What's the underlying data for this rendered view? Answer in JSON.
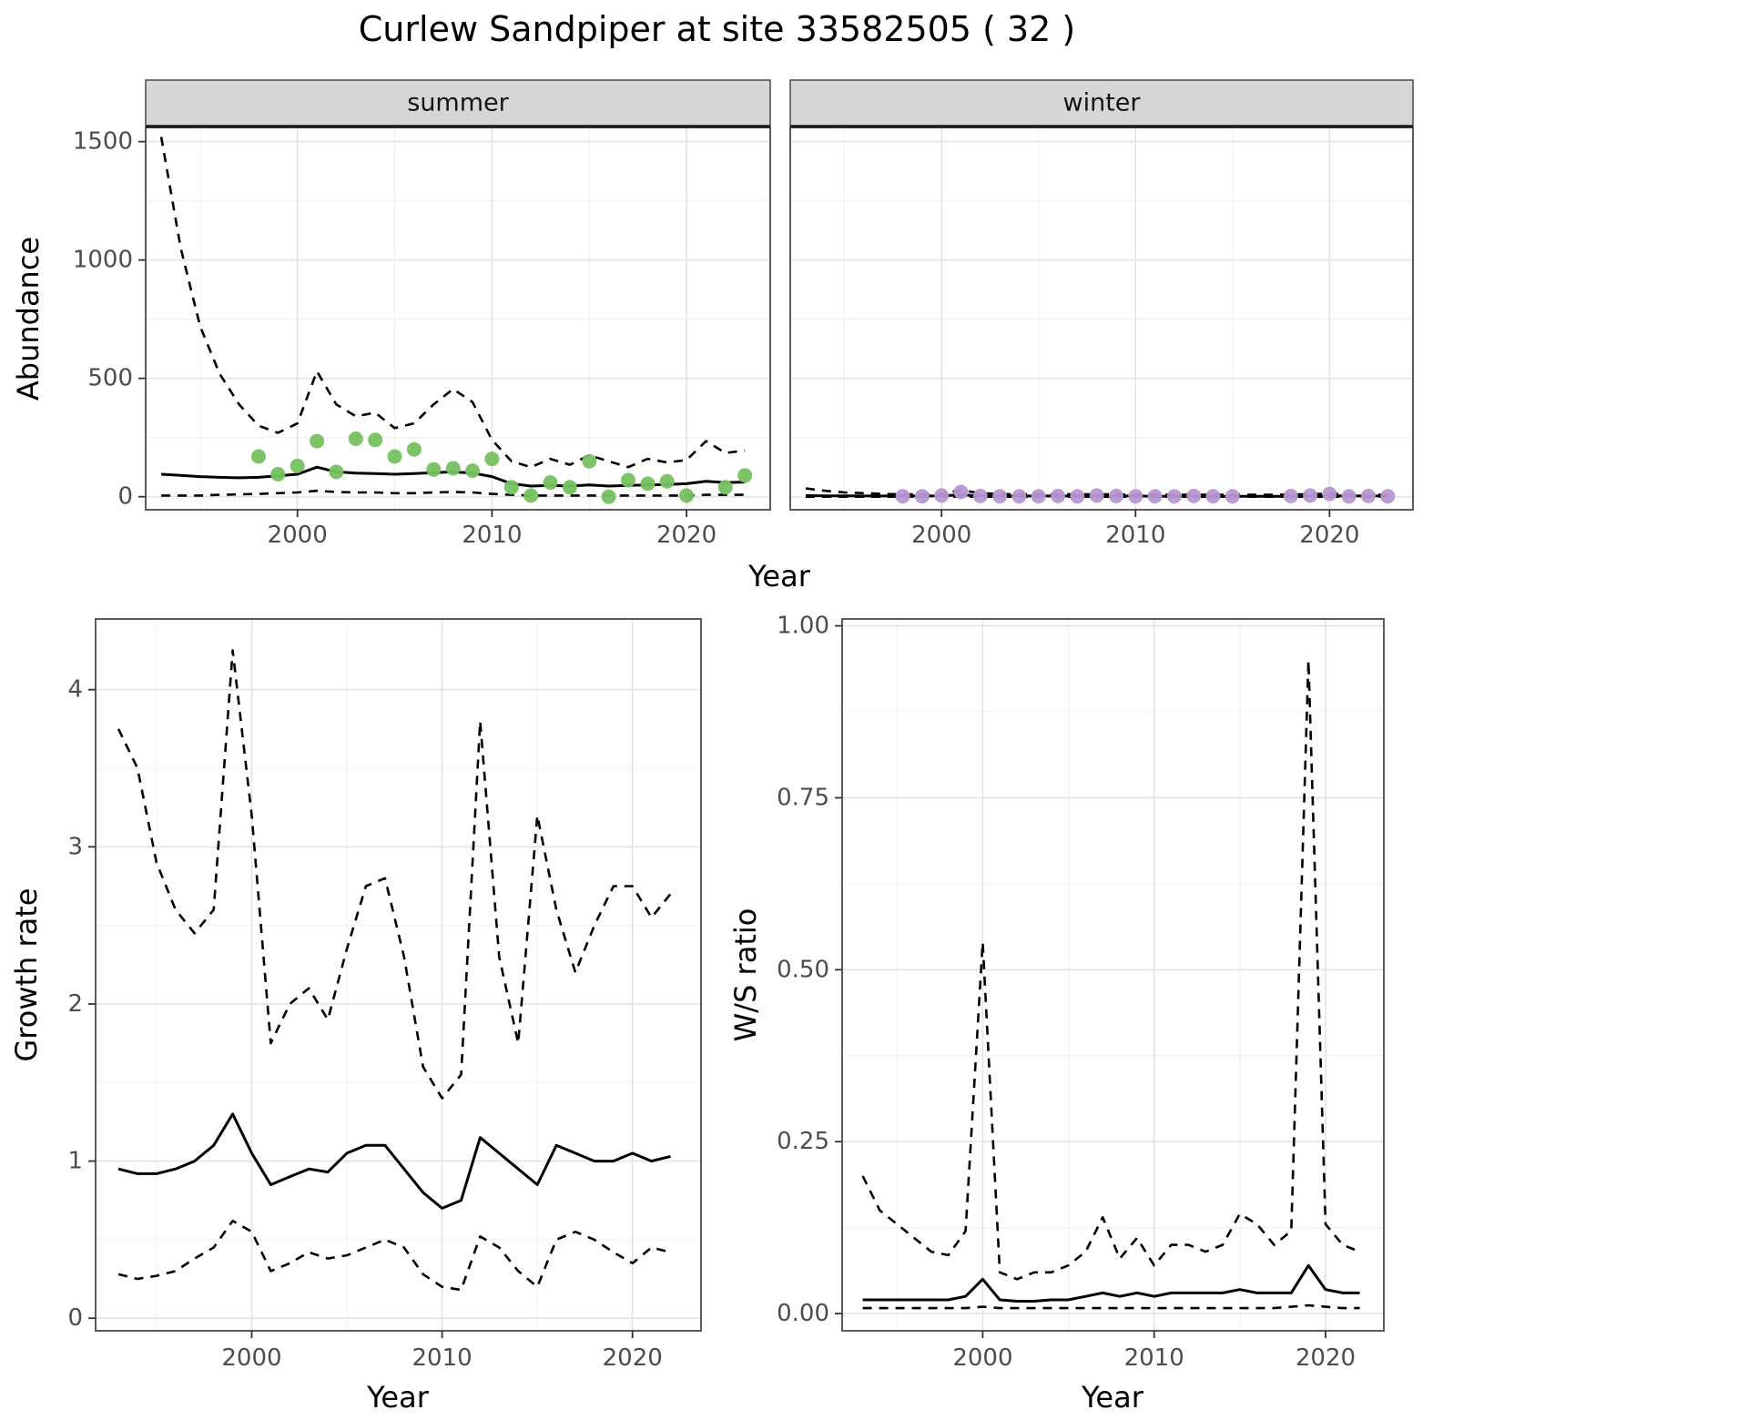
{
  "title": "Curlew Sandpiper at site 33582505 ( 32 )",
  "colors": {
    "line": "#000000",
    "grid_major": "#e3e3e3",
    "grid_minor": "#f1f1f1",
    "panel_border": "#4a4a4a",
    "strip_fill": "#d6d6d6",
    "strip_underline": "#1a1a1a",
    "tick_text": "#4d4d4d",
    "summer_point": "#76c05f",
    "winter_point": "#b897d2"
  },
  "chart_data": [
    {
      "id": "abundance-summer",
      "type": "line",
      "facet_label": "summer",
      "xlabel": "Year",
      "ylabel": "Abundance",
      "xlim": [
        1992.2,
        2024.3
      ],
      "ylim": [
        -55,
        1560
      ],
      "xticks": {
        "values": [
          2000,
          2010,
          2020
        ],
        "labels": [
          "2000",
          "2010",
          "2020"
        ]
      },
      "yticks": {
        "values": [
          0,
          500,
          1000,
          1500
        ],
        "labels": [
          "0",
          "500",
          "1000",
          "1500"
        ]
      },
      "years": [
        1993,
        1994,
        1995,
        1996,
        1997,
        1998,
        1999,
        2000,
        2001,
        2002,
        2003,
        2004,
        2005,
        2006,
        2007,
        2008,
        2009,
        2010,
        2011,
        2012,
        2013,
        2014,
        2015,
        2016,
        2017,
        2018,
        2019,
        2020,
        2021,
        2022,
        2023
      ],
      "series": [
        {
          "name": "mean",
          "style": "solid",
          "values": [
            95,
            90,
            85,
            82,
            80,
            82,
            88,
            95,
            125,
            105,
            100,
            98,
            95,
            98,
            102,
            105,
            100,
            85,
            55,
            45,
            48,
            45,
            50,
            45,
            48,
            50,
            52,
            55,
            65,
            60,
            62
          ]
        },
        {
          "name": "upper-ci",
          "style": "dashed",
          "values": [
            1520,
            1050,
            720,
            520,
            390,
            300,
            270,
            310,
            530,
            390,
            340,
            355,
            290,
            310,
            390,
            455,
            400,
            240,
            150,
            125,
            160,
            135,
            175,
            150,
            125,
            160,
            145,
            155,
            235,
            185,
            195
          ]
        },
        {
          "name": "lower-ci",
          "style": "dashed",
          "values": [
            5,
            5,
            5,
            8,
            10,
            12,
            15,
            18,
            25,
            20,
            18,
            18,
            15,
            15,
            18,
            20,
            18,
            12,
            8,
            5,
            5,
            5,
            5,
            5,
            5,
            5,
            5,
            5,
            8,
            8,
            8
          ]
        }
      ],
      "points": {
        "name": "observed-counts",
        "color_key": "summer_point",
        "x": [
          1998,
          1999,
          2000,
          2001,
          2002,
          2003,
          2004,
          2005,
          2006,
          2007,
          2008,
          2009,
          2010,
          2011,
          2012,
          2013,
          2014,
          2015,
          2016,
          2017,
          2018,
          2019,
          2020,
          2022,
          2023
        ],
        "y": [
          170,
          95,
          130,
          235,
          105,
          245,
          240,
          170,
          200,
          115,
          120,
          110,
          160,
          40,
          5,
          60,
          40,
          150,
          0,
          70,
          55,
          65,
          5,
          40,
          90
        ]
      }
    },
    {
      "id": "abundance-winter",
      "type": "line",
      "facet_label": "winter",
      "xlabel": "Year",
      "ylabel": "",
      "xlim": [
        1992.2,
        2024.3
      ],
      "ylim": [
        -55,
        1560
      ],
      "xticks": {
        "values": [
          2000,
          2010,
          2020
        ],
        "labels": [
          "2000",
          "2010",
          "2020"
        ]
      },
      "yticks": {
        "values": [
          0,
          500,
          1000,
          1500
        ],
        "labels": [
          "0",
          "500",
          "1000",
          "1500"
        ]
      },
      "years": [
        1993,
        1994,
        1995,
        1996,
        1997,
        1998,
        1999,
        2000,
        2001,
        2002,
        2003,
        2004,
        2005,
        2006,
        2007,
        2008,
        2009,
        2010,
        2011,
        2012,
        2013,
        2014,
        2015,
        2016,
        2017,
        2018,
        2019,
        2020,
        2021,
        2022,
        2023
      ],
      "series": [
        {
          "name": "mean",
          "style": "solid",
          "values": [
            5,
            4,
            4,
            3,
            3,
            3,
            3,
            4,
            8,
            4,
            3,
            3,
            3,
            3,
            3,
            3,
            3,
            3,
            2,
            2,
            2,
            2,
            2,
            2,
            2,
            2,
            3,
            3,
            4,
            3,
            3
          ]
        },
        {
          "name": "upper-ci",
          "style": "dashed",
          "values": [
            35,
            25,
            18,
            15,
            12,
            10,
            10,
            12,
            28,
            15,
            12,
            10,
            10,
            10,
            10,
            10,
            10,
            8,
            8,
            8,
            8,
            8,
            8,
            8,
            8,
            10,
            10,
            14,
            10,
            8,
            8
          ]
        },
        {
          "name": "lower-ci",
          "style": "dashed",
          "values": [
            0,
            0,
            0,
            0,
            0,
            0,
            0,
            0,
            1,
            0,
            0,
            0,
            0,
            0,
            0,
            0,
            0,
            0,
            0,
            0,
            0,
            0,
            0,
            0,
            0,
            0,
            0,
            0,
            0,
            0,
            0
          ]
        }
      ],
      "points": {
        "name": "observed-counts",
        "color_key": "winter_point",
        "x": [
          1998,
          1999,
          2000,
          2001,
          2002,
          2003,
          2004,
          2005,
          2006,
          2007,
          2008,
          2009,
          2010,
          2011,
          2012,
          2013,
          2014,
          2015,
          2018,
          2019,
          2020,
          2021,
          2022,
          2023
        ],
        "y": [
          2,
          2,
          5,
          20,
          3,
          2,
          2,
          2,
          3,
          2,
          5,
          3,
          2,
          2,
          2,
          3,
          2,
          2,
          3,
          5,
          12,
          2,
          3,
          2
        ]
      }
    },
    {
      "id": "growth-rate",
      "type": "line",
      "facet_label": "",
      "xlabel": "Year",
      "ylabel": "Growth rate",
      "xlim": [
        1991.8,
        2023.6
      ],
      "ylim": [
        -0.08,
        4.45
      ],
      "xticks": {
        "values": [
          2000,
          2010,
          2020
        ],
        "labels": [
          "2000",
          "2010",
          "2020"
        ]
      },
      "yticks": {
        "values": [
          0,
          1,
          2,
          3,
          4
        ],
        "labels": [
          "0",
          "1",
          "2",
          "3",
          "4"
        ]
      },
      "years": [
        1993,
        1994,
        1995,
        1996,
        1997,
        1998,
        1999,
        2000,
        2001,
        2002,
        2003,
        2004,
        2005,
        2006,
        2007,
        2008,
        2009,
        2010,
        2011,
        2012,
        2013,
        2014,
        2015,
        2016,
        2017,
        2018,
        2019,
        2020,
        2021,
        2022
      ],
      "series": [
        {
          "name": "mean",
          "style": "solid",
          "values": [
            0.95,
            0.92,
            0.92,
            0.95,
            1.0,
            1.1,
            1.3,
            1.05,
            0.85,
            0.9,
            0.95,
            0.93,
            1.05,
            1.1,
            1.1,
            0.95,
            0.8,
            0.7,
            0.75,
            1.15,
            1.05,
            0.95,
            0.85,
            1.1,
            1.05,
            1.0,
            1.0,
            1.05,
            1.0,
            1.03
          ]
        },
        {
          "name": "upper-ci",
          "style": "dashed",
          "values": [
            3.75,
            3.5,
            2.9,
            2.6,
            2.45,
            2.6,
            4.25,
            3.2,
            1.75,
            2.0,
            2.1,
            1.9,
            2.35,
            2.75,
            2.8,
            2.3,
            1.6,
            1.4,
            1.55,
            3.8,
            2.3,
            1.75,
            3.2,
            2.6,
            2.2,
            2.5,
            2.75,
            2.75,
            2.55,
            2.7
          ]
        },
        {
          "name": "lower-ci",
          "style": "dashed",
          "values": [
            0.28,
            0.25,
            0.27,
            0.3,
            0.38,
            0.45,
            0.62,
            0.55,
            0.3,
            0.35,
            0.42,
            0.38,
            0.4,
            0.45,
            0.5,
            0.45,
            0.28,
            0.2,
            0.18,
            0.52,
            0.45,
            0.3,
            0.2,
            0.5,
            0.55,
            0.5,
            0.42,
            0.35,
            0.45,
            0.42
          ]
        }
      ],
      "points": null
    },
    {
      "id": "ws-ratio",
      "type": "line",
      "facet_label": "",
      "xlabel": "Year",
      "ylabel": "W/S ratio",
      "xlim": [
        1991.8,
        2023.4
      ],
      "ylim": [
        -0.025,
        1.01
      ],
      "xticks": {
        "values": [
          2000,
          2010,
          2020
        ],
        "labels": [
          "2000",
          "2010",
          "2020"
        ]
      },
      "yticks": {
        "values": [
          0,
          0.25,
          0.5,
          0.75,
          1.0
        ],
        "labels": [
          "0.00",
          "0.25",
          "0.50",
          "0.75",
          "1.00"
        ]
      },
      "years": [
        1993,
        1994,
        1995,
        1996,
        1997,
        1998,
        1999,
        2000,
        2001,
        2002,
        2003,
        2004,
        2005,
        2006,
        2007,
        2008,
        2009,
        2010,
        2011,
        2012,
        2013,
        2014,
        2015,
        2016,
        2017,
        2018,
        2019,
        2020,
        2021,
        2022
      ],
      "series": [
        {
          "name": "mean",
          "style": "solid",
          "values": [
            0.02,
            0.02,
            0.02,
            0.02,
            0.02,
            0.02,
            0.025,
            0.05,
            0.02,
            0.018,
            0.018,
            0.02,
            0.02,
            0.025,
            0.03,
            0.025,
            0.03,
            0.025,
            0.03,
            0.03,
            0.03,
            0.03,
            0.035,
            0.03,
            0.03,
            0.03,
            0.07,
            0.035,
            0.03,
            0.03
          ]
        },
        {
          "name": "upper-ci",
          "style": "dashed",
          "values": [
            0.2,
            0.15,
            0.13,
            0.11,
            0.09,
            0.085,
            0.12,
            0.54,
            0.06,
            0.05,
            0.06,
            0.06,
            0.07,
            0.09,
            0.14,
            0.08,
            0.11,
            0.07,
            0.1,
            0.1,
            0.09,
            0.1,
            0.145,
            0.13,
            0.1,
            0.12,
            0.95,
            0.13,
            0.1,
            0.09
          ]
        },
        {
          "name": "lower-ci",
          "style": "dashed",
          "values": [
            0.008,
            0.008,
            0.008,
            0.008,
            0.008,
            0.008,
            0.008,
            0.01,
            0.008,
            0.008,
            0.008,
            0.008,
            0.008,
            0.008,
            0.008,
            0.008,
            0.008,
            0.008,
            0.008,
            0.008,
            0.008,
            0.008,
            0.008,
            0.008,
            0.008,
            0.01,
            0.012,
            0.01,
            0.008,
            0.008
          ]
        }
      ],
      "points": null
    }
  ]
}
